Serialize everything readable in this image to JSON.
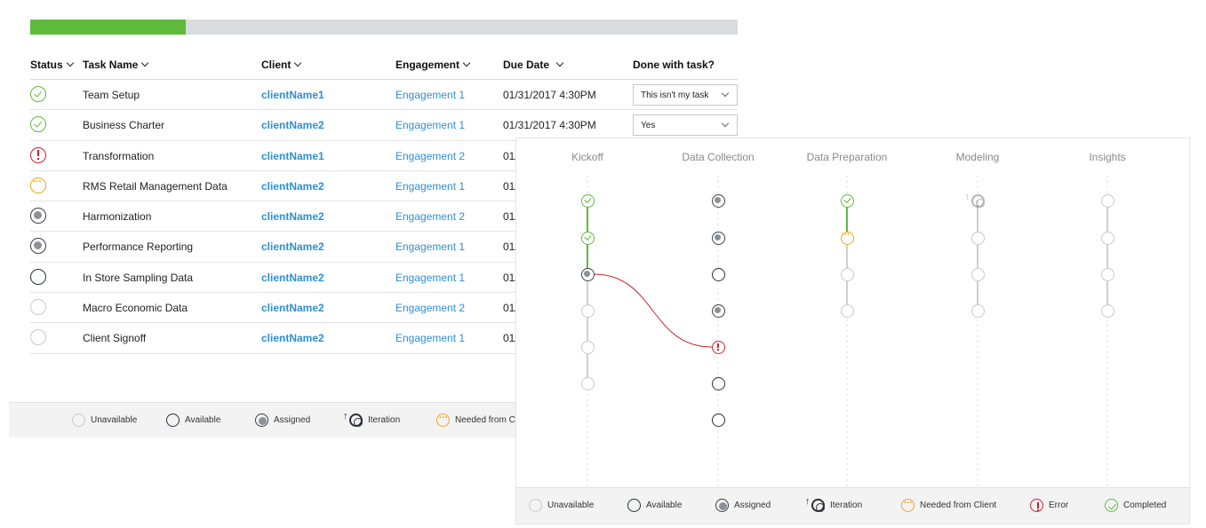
{
  "progress": {
    "fraction": 0.22,
    "fill_color": "#5fba3c",
    "track_color": "#d9dcdf"
  },
  "table": {
    "headers": {
      "status": "Status",
      "task_name": "Task Name",
      "client": "Client",
      "engagement": "Engagement",
      "due_date": "Due Date",
      "done": "Done with task?"
    },
    "rows": [
      {
        "status": "completed",
        "name": "Team Setup",
        "client": "clientName1",
        "engagement": "Engagement 1",
        "due": "01/31/2017 4:30PM",
        "done": "This isn't my task"
      },
      {
        "status": "completed",
        "name": "Business Charter",
        "client": "clientName2",
        "engagement": "Engagement 1",
        "due": "01/31/2017 4:30PM",
        "done": "Yes"
      },
      {
        "status": "error",
        "name": "Transformation",
        "client": "clientName1",
        "engagement": "Engagement 2",
        "due": "01/",
        "done": ""
      },
      {
        "status": "needed",
        "name": "RMS Retail Management Data",
        "client": "clientName2",
        "engagement": "Engagement 1",
        "due": "01/",
        "done": ""
      },
      {
        "status": "assigned",
        "name": "Harmonization",
        "client": "clientName2",
        "engagement": "Engagement 2",
        "due": "01/",
        "done": ""
      },
      {
        "status": "assigned",
        "name": "Performance Reporting",
        "client": "clientName2",
        "engagement": "Engagement 1",
        "due": "01/",
        "done": ""
      },
      {
        "status": "available",
        "name": "In Store Sampling Data",
        "client": "clientName2",
        "engagement": "Engagement 1",
        "due": "01/",
        "done": ""
      },
      {
        "status": "unavailable",
        "name": "Macro Economic Data",
        "client": "clientName2",
        "engagement": "Engagement 2",
        "due": "01/",
        "done": ""
      },
      {
        "status": "unavailable",
        "name": "Client Signoff",
        "client": "clientName2",
        "engagement": "Engagement 1",
        "due": "01/",
        "done": ""
      }
    ]
  },
  "legend_back": [
    {
      "status": "unavailable",
      "label": "Unavailable"
    },
    {
      "status": "available",
      "label": "Available"
    },
    {
      "status": "assigned",
      "label": "Assigned"
    },
    {
      "status": "iteration",
      "label": "Iteration"
    },
    {
      "status": "needed",
      "label": "Needed from Cl"
    }
  ],
  "workflow": {
    "columns": [
      {
        "title": "Kickoff",
        "nodes": [
          "completed",
          "completed",
          "assigned",
          "unavailable",
          "unavailable",
          "unavailable"
        ]
      },
      {
        "title": "Data Collection",
        "nodes": [
          "assigned",
          "assigned",
          "available",
          "assigned",
          "error",
          "available",
          "available"
        ]
      },
      {
        "title": "Data Preparation",
        "nodes": [
          "completed",
          "needed",
          "unavailable",
          "unavailable"
        ]
      },
      {
        "title": "Modeling",
        "nodes": [
          "iteration-faded",
          "unavailable",
          "unavailable",
          "unavailable"
        ]
      },
      {
        "title": "Insights",
        "nodes": [
          "unavailable",
          "unavailable",
          "unavailable",
          "unavailable"
        ]
      }
    ],
    "link": {
      "from_column": 0,
      "from_node": 2,
      "to_column": 1,
      "to_node": 4,
      "color": "#d0202a"
    },
    "colors": {
      "completed": "#5fba3c",
      "error": "#d0202a",
      "needed": "#f0a81c",
      "idle": "#cfcfcf"
    }
  },
  "legend_front": [
    {
      "status": "unavailable",
      "label": "Unavailable"
    },
    {
      "status": "available",
      "label": "Available"
    },
    {
      "status": "assigned",
      "label": "Assigned"
    },
    {
      "status": "iteration",
      "label": "Iteration"
    },
    {
      "status": "needed",
      "label": "Needed from Client"
    },
    {
      "status": "error",
      "label": "Error"
    },
    {
      "status": "completed",
      "label": "Completed"
    }
  ]
}
